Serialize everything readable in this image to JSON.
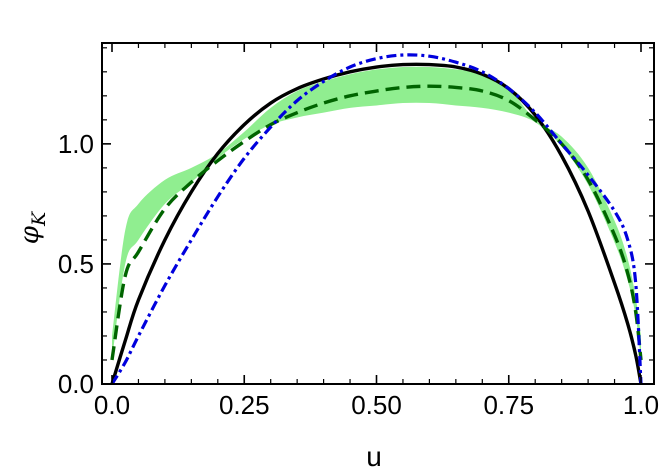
{
  "chart_data": {
    "type": "line",
    "title": "",
    "xlabel": "u",
    "ylabel": "φ_K",
    "ylabel_main": "φ",
    "ylabel_sub": "K",
    "xlim": [
      0.0,
      1.0
    ],
    "ylim": [
      0.0,
      1.42
    ],
    "xticks": [
      0.0,
      0.25,
      0.5,
      0.75,
      1.0
    ],
    "xtick_labels": [
      "0.0",
      "0.25",
      "0.50",
      "0.75",
      "1.0"
    ],
    "yticks": [
      0.0,
      0.5,
      1.0
    ],
    "ytick_labels": [
      "0.0",
      "0.5",
      "1.0"
    ],
    "grid": false,
    "legend": "none",
    "x": [
      0.0,
      0.025,
      0.05,
      0.1,
      0.15,
      0.2,
      0.25,
      0.3,
      0.35,
      0.4,
      0.45,
      0.5,
      0.55,
      0.6,
      0.65,
      0.7,
      0.75,
      0.8,
      0.85,
      0.9,
      0.95,
      0.975,
      0.99,
      1.0
    ],
    "band": {
      "color": "#90ee90",
      "lower": [
        0.1,
        0.5,
        0.6,
        0.75,
        0.84,
        0.94,
        1.02,
        1.08,
        1.11,
        1.13,
        1.15,
        1.16,
        1.17,
        1.17,
        1.16,
        1.15,
        1.13,
        1.09,
        0.99,
        0.83,
        0.59,
        0.43,
        0.28,
        0.1
      ],
      "upper": [
        0.2,
        0.64,
        0.75,
        0.85,
        0.9,
        0.96,
        1.05,
        1.15,
        1.22,
        1.26,
        1.29,
        1.31,
        1.32,
        1.32,
        1.31,
        1.29,
        1.23,
        1.1,
        1.03,
        0.9,
        0.68,
        0.52,
        0.36,
        0.2
      ]
    },
    "series": [
      {
        "color": "#000000",
        "style": "solid",
        "values": [
          0.0,
          0.18,
          0.35,
          0.6,
          0.8,
          0.96,
          1.08,
          1.17,
          1.23,
          1.27,
          1.3,
          1.32,
          1.33,
          1.33,
          1.32,
          1.29,
          1.23,
          1.12,
          0.95,
          0.72,
          0.42,
          0.25,
          0.12,
          0.0
        ]
      },
      {
        "color": "#006400",
        "style": "dashed",
        "values": [
          0.1,
          0.45,
          0.55,
          0.73,
          0.84,
          0.93,
          1.01,
          1.08,
          1.13,
          1.17,
          1.2,
          1.22,
          1.235,
          1.24,
          1.235,
          1.22,
          1.18,
          1.1,
          1.0,
          0.85,
          0.62,
          0.46,
          0.3,
          0.1
        ]
      },
      {
        "color": "#0000dd",
        "style": "dashdot",
        "values": [
          0.0,
          0.09,
          0.2,
          0.41,
          0.6,
          0.78,
          0.94,
          1.07,
          1.18,
          1.26,
          1.32,
          1.355,
          1.37,
          1.365,
          1.34,
          1.3,
          1.23,
          1.13,
          1.0,
          0.87,
          0.72,
          0.6,
          0.42,
          0.0
        ]
      }
    ]
  }
}
